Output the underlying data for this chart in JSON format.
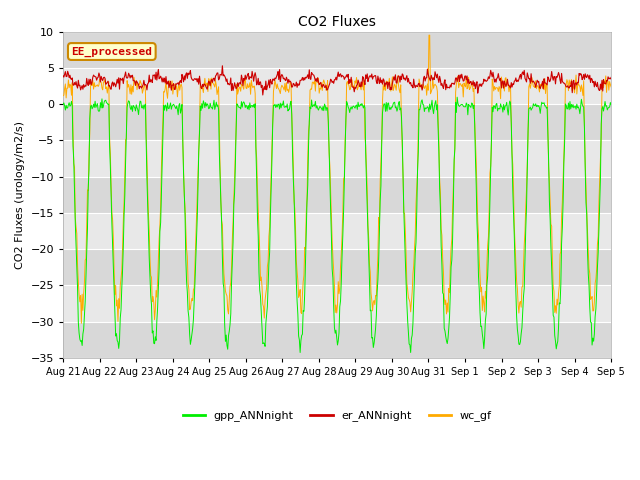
{
  "title": "CO2 Fluxes",
  "ylabel": "CO2 Fluxes (urology/m2/s)",
  "ylim": [
    -35,
    10
  ],
  "yticks": [
    -35,
    -30,
    -25,
    -20,
    -15,
    -10,
    -5,
    0,
    5,
    10
  ],
  "fig_bg_color": "#ffffff",
  "plot_bg_color": "#e8e8e8",
  "band_colors": [
    "#d8d8d8",
    "#e8e8e8"
  ],
  "grid_color": "#ffffff",
  "annotation_text": "EE_processed",
  "annotation_bg": "#ffffcc",
  "annotation_border": "#cc8800",
  "annotation_text_color": "#cc0000",
  "line_green": "#00ee00",
  "line_red": "#cc0000",
  "line_orange": "#ffaa00",
  "legend_labels": [
    "gpp_ANNnight",
    "er_ANNnight",
    "wc_gf"
  ],
  "n_days": 15,
  "points_per_day": 48,
  "x_tick_labels": [
    "Aug 21",
    "Aug 22",
    "Aug 23",
    "Aug 24",
    "Aug 25",
    "Aug 26",
    "Aug 27",
    "Aug 28",
    "Aug 29",
    "Aug 30",
    "Aug 31",
    "Sep 1",
    "Sep 2",
    "Sep 3",
    "Sep 4",
    "Sep 5"
  ]
}
